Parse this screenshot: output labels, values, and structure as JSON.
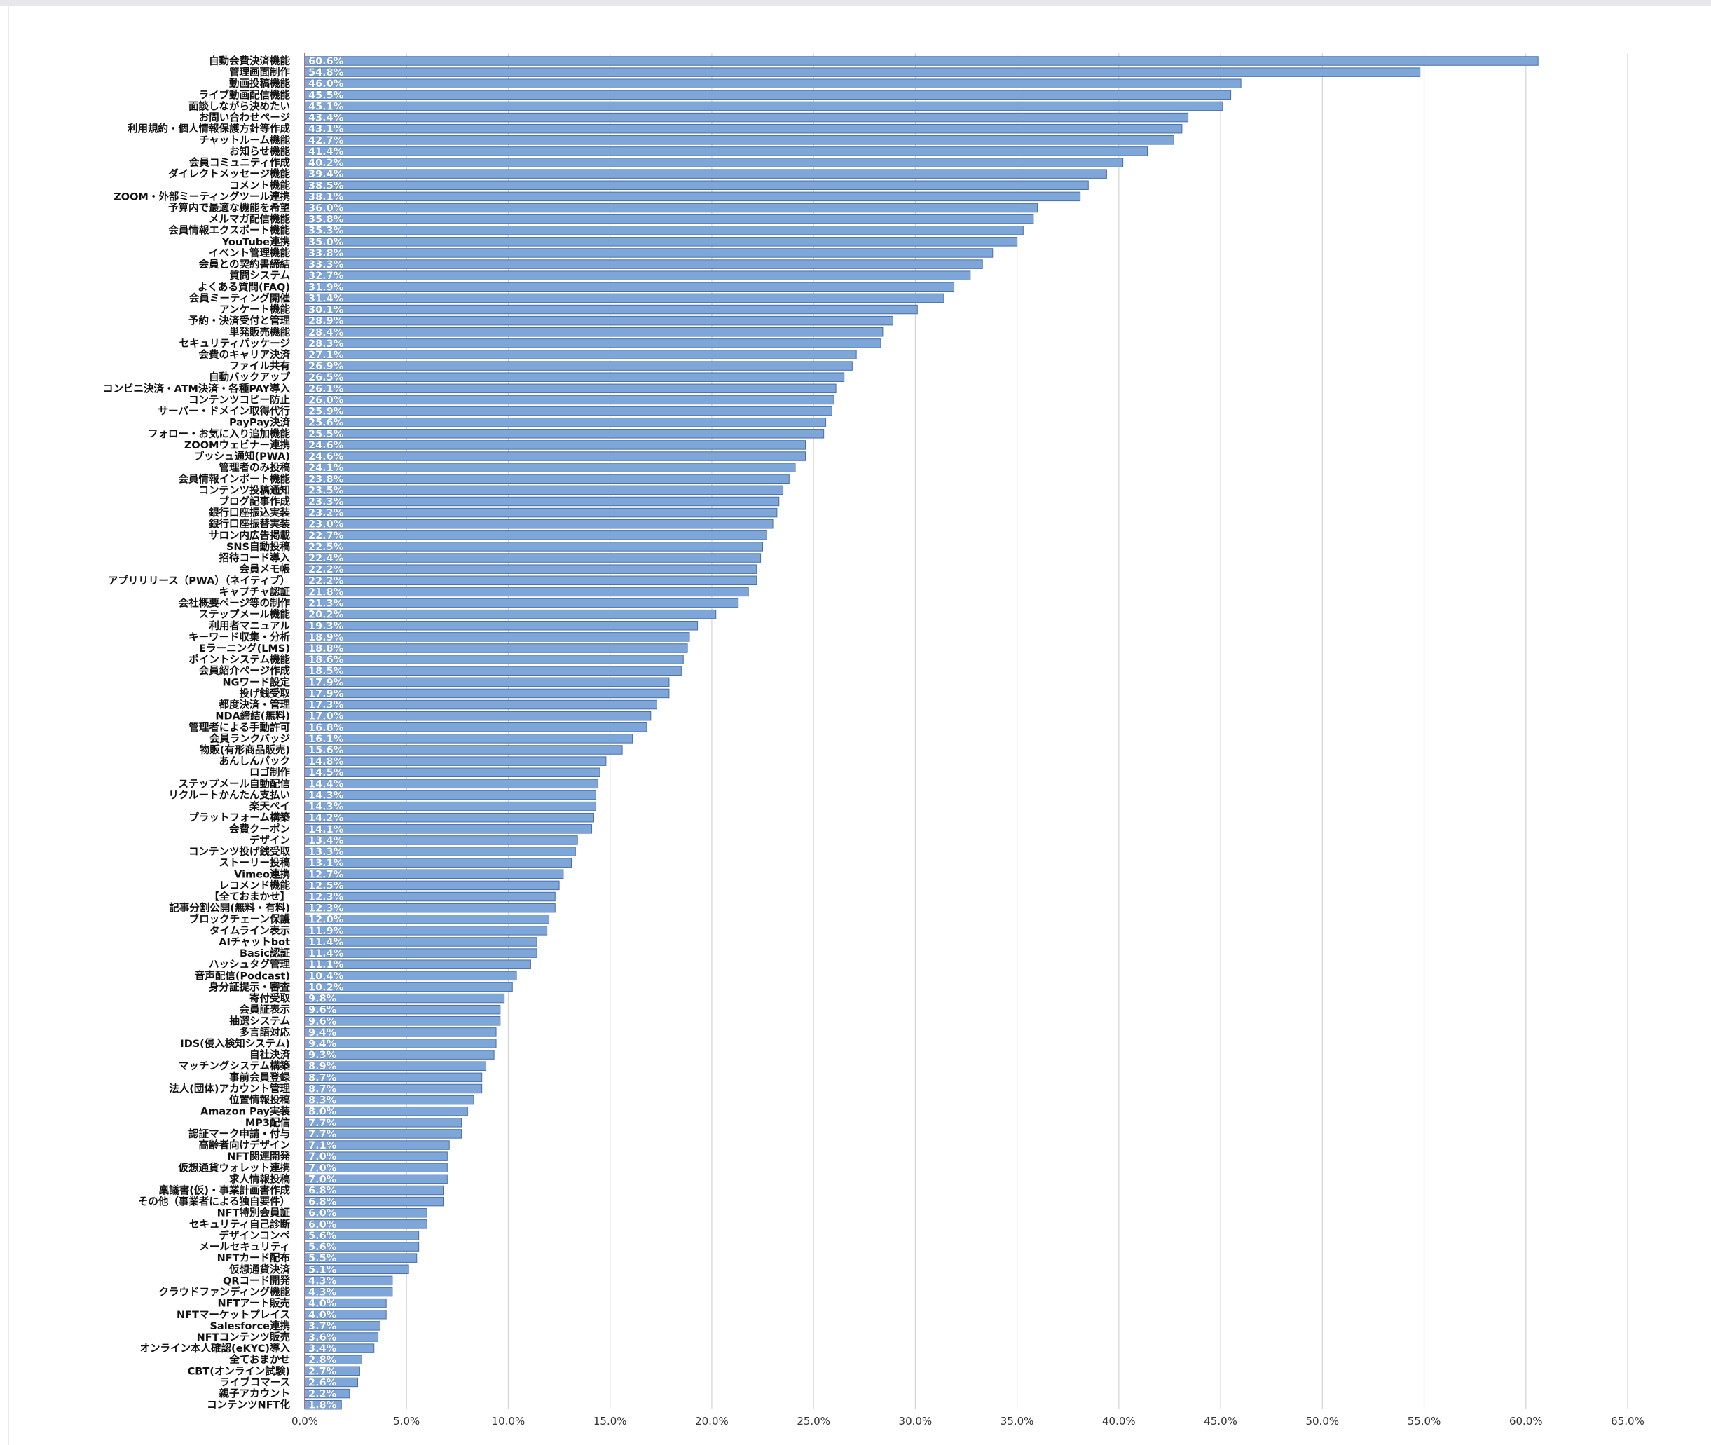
{
  "chart_data": {
    "type": "bar",
    "orientation": "horizontal",
    "title": "",
    "xlabel": "",
    "ylabel": "",
    "xlim": [
      0,
      65
    ],
    "xticks": [
      "0.0%",
      "5.0%",
      "10.0%",
      "15.0%",
      "20.0%",
      "25.0%",
      "30.0%",
      "35.0%",
      "40.0%",
      "45.0%",
      "50.0%",
      "55.0%",
      "60.0%",
      "65.0%"
    ],
    "grid": "vertical",
    "legend": "none",
    "bar_color": "#7ea6d8",
    "bar_edge_color": "#4a6fa5",
    "categories": [
      "自動会費決済機能",
      "管理画面制作",
      "動画投稿機能",
      "ライブ動画配信機能",
      "面談しながら決めたい",
      "お問い合わせページ",
      "利用規約・個人情報保護方針等作成",
      "チャットルーム機能",
      "お知らせ機能",
      "会員コミュニティ作成",
      "ダイレクトメッセージ機能",
      "コメント機能",
      "ZOOM・外部ミーティングツール連携",
      "予算内で最適な機能を希望",
      "メルマガ配信機能",
      "会員情報エクスポート機能",
      "YouTube連携",
      "イベント管理機能",
      "会員との契約書締結",
      "質問システム",
      "よくある質問(FAQ)",
      "会員ミーティング開催",
      "アンケート機能",
      "予約・決済受付と管理",
      "単発販売機能",
      "セキュリティパッケージ",
      "会費のキャリア決済",
      "ファイル共有",
      "自動バックアップ",
      "コンビニ決済・ATM決済・各種PAY導入",
      "コンテンツコピー防止",
      "サーバー・ドメイン取得代行",
      "PayPay決済",
      "フォロー・お気に入り追加機能",
      "ZOOMウェビナー連携",
      "プッシュ通知(PWA)",
      "管理者のみ投稿",
      "会員情報インポート機能",
      "コンテンツ投稿通知",
      "ブログ記事作成",
      "銀行口座振込実装",
      "銀行口座振替実装",
      "サロン内広告掲載",
      "SNS自動投稿",
      "招待コード導入",
      "会員メモ帳",
      "アプリリリース（PWA）（ネイティブ）",
      "キャプチャ認証",
      "会社概要ページ等の制作",
      "ステップメール機能",
      "利用者マニュアル",
      "キーワード収集・分析",
      "Eラーニング(LMS)",
      "ポイントシステム機能",
      "会員紹介ページ作成",
      "NGワード設定",
      "投げ銭受取",
      "都度決済・管理",
      "NDA締結(無料)",
      "管理者による手動許可",
      "会員ランクバッジ",
      "物販(有形商品販売)",
      "あんしんパック",
      "ロゴ制作",
      "ステップメール自動配信",
      "リクルートかんたん支払い",
      "楽天ペイ",
      "プラットフォーム構築",
      "会費クーポン",
      "デザイン",
      "コンテンツ投げ銭受取",
      "ストーリー投稿",
      "Vimeo連携",
      "レコメンド機能",
      "【全ておまかせ】",
      "記事分割公開(無料・有料)",
      "ブロックチェーン保護",
      "タイムライン表示",
      "AIチャットbot",
      "Basic認証",
      "ハッシュタグ管理",
      "音声配信(Podcast)",
      "身分証提示・審査",
      "寄付受取",
      "会員証表示",
      "抽選システム",
      "多言語対応",
      "IDS(侵入検知システム)",
      "自社決済",
      "マッチングシステム構築",
      "事前会員登録",
      "法人(団体)アカウント管理",
      "位置情報投稿",
      "Amazon Pay実装",
      "MP3配信",
      "認証マーク申請・付与",
      "高齢者向けデザイン",
      "NFT関連開発",
      "仮想通貨ウォレット連携",
      "求人情報投稿",
      "稟議書(仮)・事業計画書作成",
      "その他（事業者による独自要件）",
      "NFT特別会員証",
      "セキュリティ自己診断",
      "デザインコンペ",
      "メールセキュリティ",
      "NFTカード配布",
      "仮想通貨決済",
      "QRコード開発",
      "クラウドファンディング機能",
      "NFTアート販売",
      "NFTマーケットプレイス",
      "Salesforce連携",
      "NFTコンテンツ販売",
      "オンライン本人確認(eKYC)導入",
      "全ておまかせ",
      "CBT(オンライン試験)",
      "ライブコマース",
      "親子アカウント",
      "コンテンツNFT化"
    ],
    "values": [
      60.6,
      54.8,
      46.0,
      45.5,
      45.1,
      43.4,
      43.1,
      42.7,
      41.4,
      40.2,
      39.4,
      38.5,
      38.1,
      36.0,
      35.8,
      35.3,
      35.0,
      33.8,
      33.3,
      32.7,
      31.9,
      31.4,
      30.1,
      28.9,
      28.4,
      28.3,
      27.1,
      26.9,
      26.5,
      26.1,
      26.0,
      25.9,
      25.6,
      25.5,
      24.6,
      24.6,
      24.1,
      23.8,
      23.5,
      23.3,
      23.2,
      23.0,
      22.7,
      22.5,
      22.4,
      22.2,
      22.2,
      21.8,
      21.3,
      20.2,
      19.3,
      18.9,
      18.8,
      18.6,
      18.5,
      17.9,
      17.9,
      17.3,
      17.0,
      16.8,
      16.1,
      15.6,
      14.8,
      14.5,
      14.4,
      14.3,
      14.3,
      14.2,
      14.1,
      13.4,
      13.3,
      13.1,
      12.7,
      12.5,
      12.3,
      12.3,
      12.0,
      11.9,
      11.4,
      11.4,
      11.1,
      10.4,
      10.2,
      9.8,
      9.6,
      9.6,
      9.4,
      9.4,
      9.3,
      8.9,
      8.7,
      8.7,
      8.3,
      8.0,
      7.7,
      7.7,
      7.1,
      7.0,
      7.0,
      7.0,
      6.8,
      6.8,
      6.0,
      6.0,
      5.6,
      5.6,
      5.5,
      5.1,
      4.3,
      4.3,
      4.0,
      4.0,
      3.7,
      3.6,
      3.4,
      2.8,
      2.7,
      2.6,
      2.2,
      1.8
    ],
    "value_labels": [
      "60.6%",
      "54.8%",
      "46.0%",
      "45.5%",
      "45.1%",
      "43.4%",
      "43.1%",
      "42.7%",
      "41.4%",
      "40.2%",
      "39.4%",
      "38.5%",
      "38.1%",
      "36.0%",
      "35.8%",
      "35.3%",
      "35.0%",
      "33.8%",
      "33.3%",
      "32.7%",
      "31.9%",
      "31.4%",
      "30.1%",
      "28.9%",
      "28.4%",
      "28.3%",
      "27.1%",
      "26.9%",
      "26.5%",
      "26.1%",
      "26.0%",
      "25.9%",
      "25.6%",
      "25.5%",
      "24.6%",
      "24.6%",
      "24.1%",
      "23.8%",
      "23.5%",
      "23.3%",
      "23.2%",
      "23.0%",
      "22.7%",
      "22.5%",
      "22.4%",
      "22.2%",
      "22.2%",
      "21.8%",
      "21.3%",
      "20.2%",
      "19.3%",
      "18.9%",
      "18.8%",
      "18.6%",
      "18.5%",
      "17.9%",
      "17.9%",
      "17.3%",
      "17.0%",
      "16.8%",
      "16.1%",
      "15.6%",
      "14.8%",
      "14.5%",
      "14.4%",
      "14.3%",
      "14.3%",
      "14.2%",
      "14.1%",
      "13.4%",
      "13.3%",
      "13.1%",
      "12.7%",
      "12.5%",
      "12.3%",
      "12.3%",
      "12.0%",
      "11.9%",
      "11.4%",
      "11.4%",
      "11.1%",
      "10.4%",
      "10.2%",
      "9.8%",
      "9.6%",
      "9.6%",
      "9.4%",
      "9.4%",
      "9.3%",
      "8.9%",
      "8.7%",
      "8.7%",
      "8.3%",
      "8.0%",
      "7.7%",
      "7.7%",
      "7.1%",
      "7.0%",
      "7.0%",
      "7.0%",
      "6.8%",
      "6.8%",
      "6.0%",
      "6.0%",
      "5.6%",
      "5.6%",
      "5.5%",
      "5.1%",
      "4.3%",
      "4.3%",
      "4.0%",
      "4.0%",
      "3.7%",
      "3.6%",
      "3.4%",
      "2.8%",
      "2.7%",
      "2.6%",
      "2.2%",
      "1.8%"
    ]
  }
}
